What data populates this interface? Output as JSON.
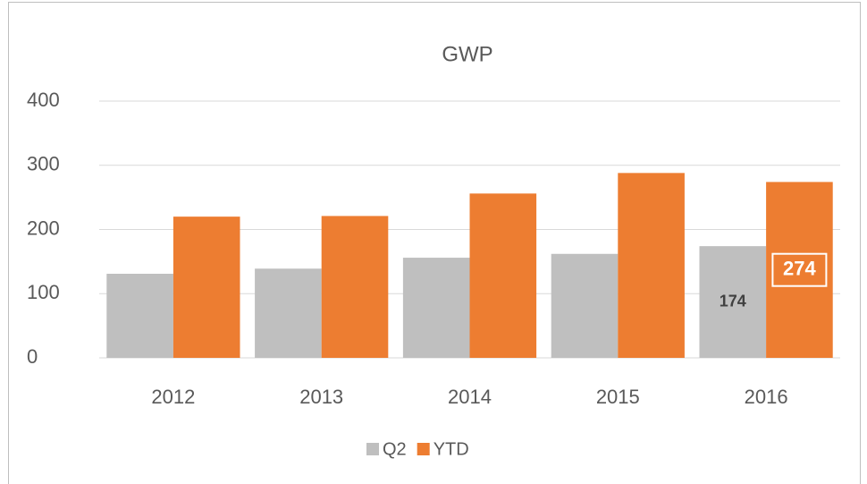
{
  "chart_data": {
    "type": "bar",
    "title": "GWP",
    "categories": [
      "2012",
      "2013",
      "2014",
      "2015",
      "2016"
    ],
    "series": [
      {
        "name": "Q2",
        "color": "#bfbfbf",
        "values": [
          131,
          139,
          156,
          162,
          174
        ]
      },
      {
        "name": "YTD",
        "color": "#ed7d31",
        "values": [
          220,
          221,
          256,
          288,
          274
        ]
      }
    ],
    "data_labels_at": [
      4
    ],
    "ylim": [
      0,
      400
    ],
    "yticks": [
      0,
      100,
      200,
      300,
      400
    ],
    "grid": true,
    "legend": "bottom"
  }
}
